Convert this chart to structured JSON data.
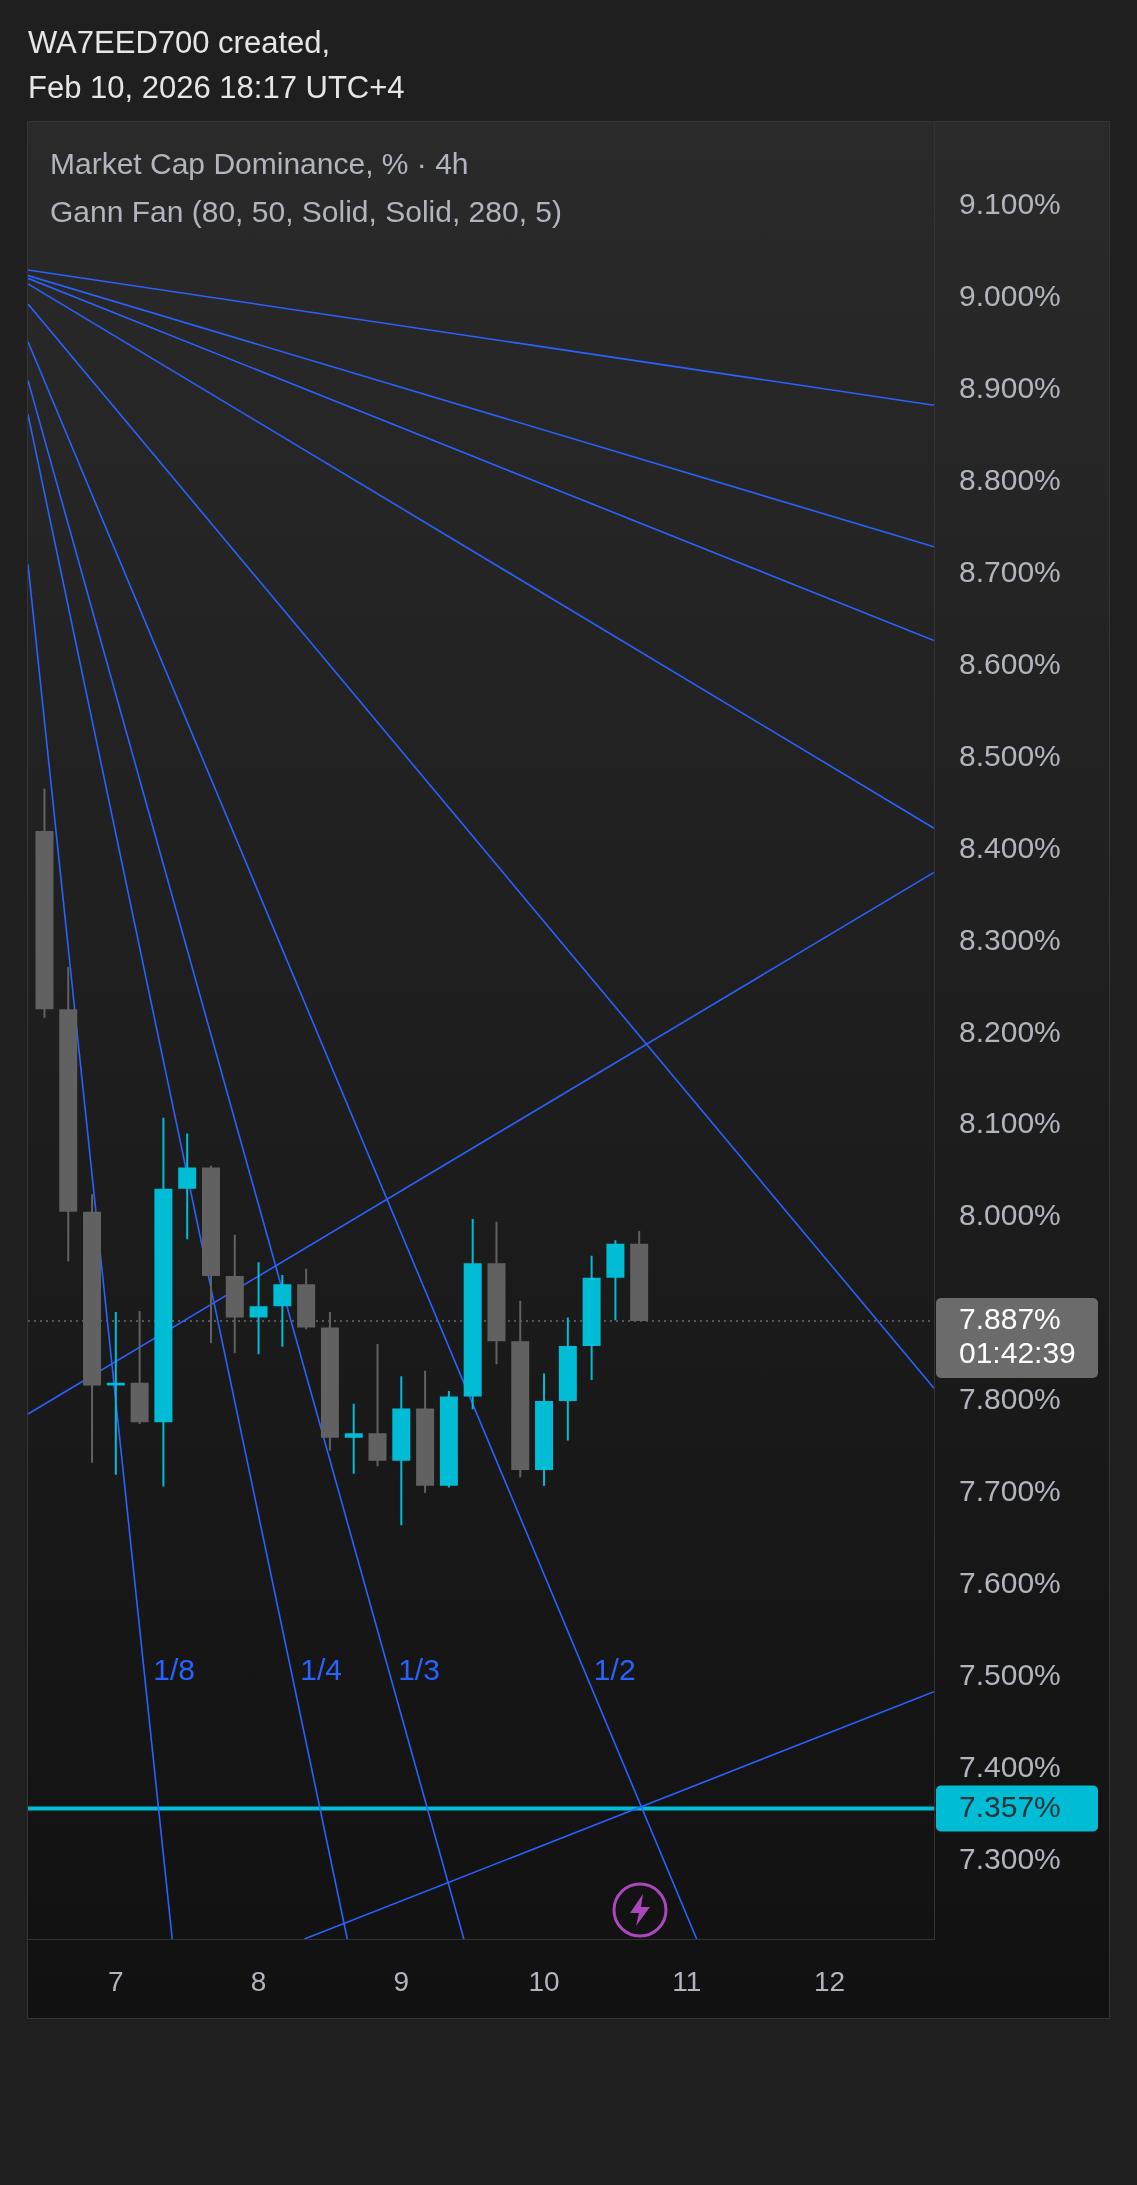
{
  "chart_data": {
    "type": "candlestick",
    "title": "Market Cap Dominance, % · 4h",
    "subtitle": "Gann Fan (80, 50, Solid, Solid, 280, 5)",
    "x": [
      "2026-02-06T12:00",
      "2026-02-06T16:00",
      "2026-02-06T20:00",
      "2026-02-07T00:00",
      "2026-02-07T04:00",
      "2026-02-07T08:00",
      "2026-02-07T12:00",
      "2026-02-07T16:00",
      "2026-02-07T20:00",
      "2026-02-08T00:00",
      "2026-02-08T04:00",
      "2026-02-08T08:00",
      "2026-02-08T12:00",
      "2026-02-08T16:00",
      "2026-02-08T20:00",
      "2026-02-09T00:00",
      "2026-02-09T04:00",
      "2026-02-09T08:00",
      "2026-02-09T12:00",
      "2026-02-09T16:00",
      "2026-02-09T20:00",
      "2026-02-10T00:00",
      "2026-02-10T04:00",
      "2026-02-10T08:00",
      "2026-02-10T12:00",
      "2026-02-10T16:00"
    ],
    "ohlc": [
      [
        8.42,
        8.466,
        8.217,
        8.226
      ],
      [
        8.226,
        8.272,
        7.952,
        8.006
      ],
      [
        8.006,
        8.025,
        7.733,
        7.817
      ],
      [
        7.817,
        7.897,
        7.72,
        7.82
      ],
      [
        7.82,
        7.898,
        7.775,
        7.777
      ],
      [
        7.777,
        8.108,
        7.707,
        8.031
      ],
      [
        8.031,
        8.091,
        7.976,
        8.054
      ],
      [
        8.054,
        8.056,
        7.863,
        7.936
      ],
      [
        7.936,
        7.981,
        7.852,
        7.891
      ],
      [
        7.891,
        7.951,
        7.851,
        7.903
      ],
      [
        7.903,
        7.937,
        7.859,
        7.927
      ],
      [
        7.927,
        7.944,
        7.878,
        7.88
      ],
      [
        7.88,
        7.897,
        7.746,
        7.76
      ],
      [
        7.76,
        7.797,
        7.721,
        7.765
      ],
      [
        7.765,
        7.862,
        7.729,
        7.735
      ],
      [
        7.735,
        7.827,
        7.665,
        7.792
      ],
      [
        7.792,
        7.833,
        7.7,
        7.708
      ],
      [
        7.708,
        7.811,
        7.706,
        7.805
      ],
      [
        7.805,
        7.998,
        7.791,
        7.95
      ],
      [
        7.95,
        7.995,
        7.84,
        7.865
      ],
      [
        7.865,
        7.909,
        7.717,
        7.725
      ],
      [
        7.725,
        7.83,
        7.708,
        7.8
      ],
      [
        7.8,
        7.891,
        7.757,
        7.86
      ],
      [
        7.86,
        7.958,
        7.823,
        7.934
      ],
      [
        7.934,
        7.975,
        7.888,
        7.971
      ],
      [
        7.971,
        7.985,
        7.887,
        7.887
      ]
    ],
    "colors": [
      "#616161",
      "#616161",
      "#616161",
      "#00bcd4",
      "#616161",
      "#00bcd4",
      "#00bcd4",
      "#616161",
      "#616161",
      "#00bcd4",
      "#00bcd4",
      "#616161",
      "#616161",
      "#00bcd4",
      "#616161",
      "#00bcd4",
      "#616161",
      "#00bcd4",
      "#00bcd4",
      "#616161",
      "#616161",
      "#00bcd4",
      "#00bcd4",
      "#00bcd4",
      "#00bcd4",
      "#616161"
    ],
    "series": [
      {
        "type": "line",
        "color": "#2962ff",
        "x": [
          "2026-02-06T09:14",
          "2026-02-12T17:34"
        ],
        "values": [
          9.03,
          8.883
        ]
      },
      {
        "type": "line",
        "color": "#2962ff",
        "x": [
          "2026-02-06T09:14",
          "2026-02-12T17:34"
        ],
        "values": [
          9.024,
          8.729
        ]
      },
      {
        "type": "line",
        "color": "#2962ff",
        "x": [
          "2026-02-06T09:14",
          "2026-02-12T17:34"
        ],
        "values": [
          9.021,
          8.627
        ]
      },
      {
        "type": "line",
        "color": "#2962ff",
        "x": [
          "2026-02-06T09:14",
          "2026-02-12T17:34"
        ],
        "values": [
          9.015,
          8.423
        ]
      },
      {
        "type": "line",
        "color": "#2962ff",
        "x": [
          "2026-02-06T09:14",
          "2026-02-12T17:34"
        ],
        "values": [
          8.993,
          7.814
        ]
      },
      {
        "type": "line",
        "name": "1/2",
        "color": "#2962ff",
        "x": [
          "2026-02-06T09:14",
          "2026-02-11T01:40"
        ],
        "values": [
          8.952,
          7.215
        ]
      },
      {
        "type": "line",
        "name": "1/3",
        "color": "#2962ff",
        "x": [
          "2026-02-06T09:14",
          "2026-02-09T10:31"
        ],
        "values": [
          8.91,
          7.215
        ]
      },
      {
        "type": "line",
        "name": "1/4",
        "color": "#2962ff",
        "x": [
          "2026-02-06T09:14",
          "2026-02-08T14:55"
        ],
        "values": [
          8.873,
          7.215
        ]
      },
      {
        "type": "line",
        "name": "1/8",
        "color": "#2962ff",
        "x": [
          "2026-02-06T09:14",
          "2026-02-07T09:29"
        ],
        "values": [
          8.71,
          7.215
        ]
      },
      {
        "type": "line",
        "color": "#2962ff",
        "x": [
          "2026-02-06T09:14",
          "2026-02-12T17:34"
        ],
        "values": [
          7.786,
          8.375
        ]
      },
      {
        "type": "line",
        "color": "#2962ff",
        "x": [
          "2026-02-08T07:43",
          "2026-02-12T17:34"
        ],
        "values": [
          7.215,
          7.484
        ]
      }
    ],
    "xlim": [
      "2026-02-06T09:14",
      "2026-02-12T17:34"
    ],
    "xticks": [
      {
        "value": "2026-02-07",
        "label": "7"
      },
      {
        "value": "2026-02-08",
        "label": "8"
      },
      {
        "value": "2026-02-09",
        "label": "9"
      },
      {
        "value": "2026-02-10",
        "label": "10"
      },
      {
        "value": "2026-02-11",
        "label": "11"
      },
      {
        "value": "2026-02-12",
        "label": "12"
      }
    ],
    "ylim": [
      7.215,
      9.191
    ],
    "yticks": [
      {
        "value": 7.3,
        "label": "7.300%"
      },
      {
        "value": 7.4,
        "label": "7.400%"
      },
      {
        "value": 7.5,
        "label": "7.500%"
      },
      {
        "value": 7.6,
        "label": "7.600%"
      },
      {
        "value": 7.7,
        "label": "7.700%"
      },
      {
        "value": 7.8,
        "label": "7.800%"
      },
      {
        "value": 8.0,
        "label": "8.000%"
      },
      {
        "value": 8.1,
        "label": "8.100%"
      },
      {
        "value": 8.2,
        "label": "8.200%"
      },
      {
        "value": 8.3,
        "label": "8.300%"
      },
      {
        "value": 8.4,
        "label": "8.400%"
      },
      {
        "value": 8.5,
        "label": "8.500%"
      },
      {
        "value": 8.6,
        "label": "8.600%"
      },
      {
        "value": 8.7,
        "label": "8.700%"
      },
      {
        "value": 8.8,
        "label": "8.800%"
      },
      {
        "value": 8.9,
        "label": "8.900%"
      },
      {
        "value": 9.0,
        "label": "9.000%"
      },
      {
        "value": 9.1,
        "label": "9.100%"
      }
    ],
    "ref_lines": [
      {
        "axis": "y",
        "value": 7.887,
        "label": "7.887%\n01:42:39",
        "color": "#6b6b6b",
        "line_style": "dotted"
      },
      {
        "axis": "y",
        "value": 7.357,
        "label": "7.357%",
        "color": "#00bcd4",
        "line_style": "solid"
      }
    ],
    "annotations": [
      "WA7EED700 created,",
      "Feb 10, 2026 18:17 UTC+4"
    ]
  }
}
